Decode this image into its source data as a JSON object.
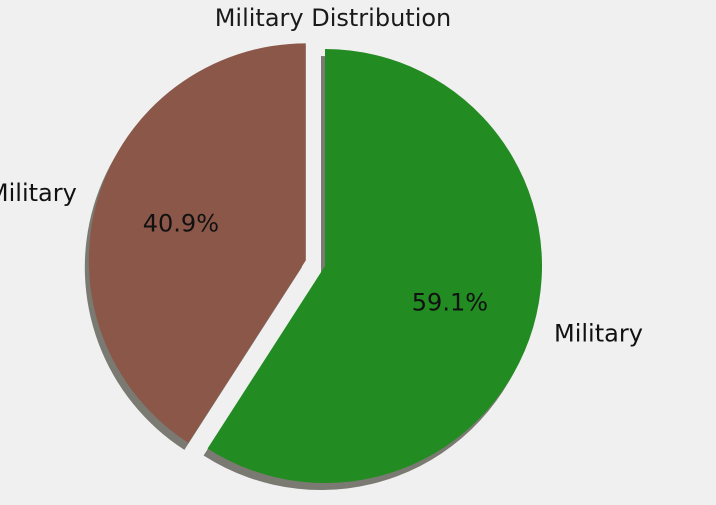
{
  "chart_data": {
    "type": "pie",
    "title": "Military Distribution",
    "categories": [
      "Military",
      "Not Military"
    ],
    "values": [
      59.1,
      40.9
    ],
    "value_labels": [
      "59.1%",
      "40.9%"
    ],
    "exploded": [
      false,
      true
    ],
    "shadow": true,
    "legend": "none",
    "colors": [
      "#228b22",
      "#8b5749"
    ],
    "shadow_color": "#7a7a72"
  }
}
